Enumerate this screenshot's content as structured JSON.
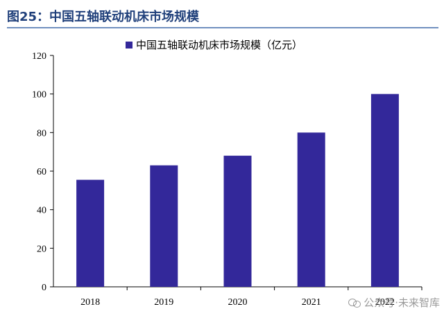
{
  "figure_title": "图25：中国五轴联动机床市场规模",
  "watermark": "公众号·未来智库",
  "colors": {
    "bar": "#33289a",
    "title": "#1f3f7a",
    "axis": "#000000"
  },
  "chart_data": {
    "type": "bar",
    "categories": [
      "2018",
      "2019",
      "2020",
      "2021",
      "2022"
    ],
    "series": [
      {
        "name": "中国五轴联动机床市场规模（亿元）",
        "values": [
          55.5,
          63,
          68,
          80,
          100
        ]
      }
    ],
    "y_ticks": [
      "0",
      "20",
      "40",
      "60",
      "80",
      "100",
      "120"
    ],
    "ylim": [
      0,
      120
    ],
    "grid": false,
    "legend_position": "top-center"
  }
}
